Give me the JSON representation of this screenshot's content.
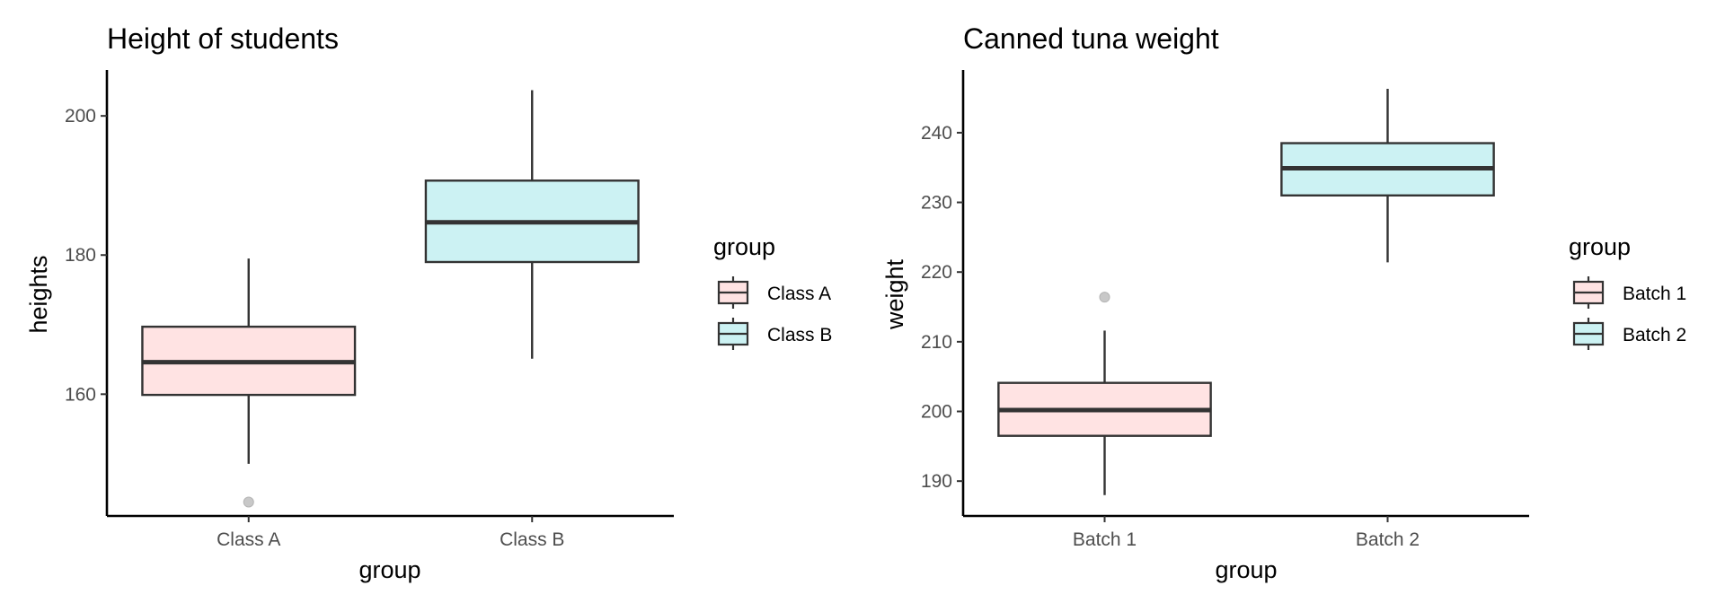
{
  "colors": {
    "fill_1": "#FFE3E3",
    "fill_2": "#CCF2F3",
    "box_stroke": "#333333",
    "outlier": "#C8C8C8"
  },
  "chart_data": [
    {
      "type": "box",
      "title": "Height of students",
      "xlabel": "group",
      "ylabel": "heights",
      "categories": [
        "Class A",
        "Class B"
      ],
      "yticks": [
        160,
        180,
        200
      ],
      "ylim": [
        142.5,
        206.6
      ],
      "boxes": [
        {
          "category": "Class A",
          "whisker_low": 150,
          "q1": 159.9,
          "median": 164.6,
          "q3": 169.7,
          "whisker_high": 179.5,
          "outliers": [
            144.5
          ]
        },
        {
          "category": "Class B",
          "whisker_low": 165.1,
          "q1": 179.0,
          "median": 184.7,
          "q3": 190.7,
          "whisker_high": 203.7,
          "outliers": []
        }
      ],
      "legend": {
        "title": "group",
        "position": "right",
        "items": [
          "Class A",
          "Class B"
        ]
      },
      "grid": false
    },
    {
      "type": "box",
      "title": "Canned tuna weight",
      "xlabel": "group",
      "ylabel": "weight",
      "categories": [
        "Batch 1",
        "Batch 2"
      ],
      "yticks": [
        190,
        200,
        210,
        220,
        230,
        240
      ],
      "ylim": [
        185,
        249
      ],
      "boxes": [
        {
          "category": "Batch 1",
          "whisker_low": 188,
          "q1": 196.5,
          "median": 200.2,
          "q3": 204.1,
          "whisker_high": 211.6,
          "outliers": [
            216.4
          ]
        },
        {
          "category": "Batch 2",
          "whisker_low": 221.4,
          "q1": 231.0,
          "median": 234.9,
          "q3": 238.5,
          "whisker_high": 246.3,
          "outliers": []
        }
      ],
      "legend": {
        "title": "group",
        "position": "right",
        "items": [
          "Batch 1",
          "Batch 2"
        ]
      },
      "grid": false
    }
  ]
}
